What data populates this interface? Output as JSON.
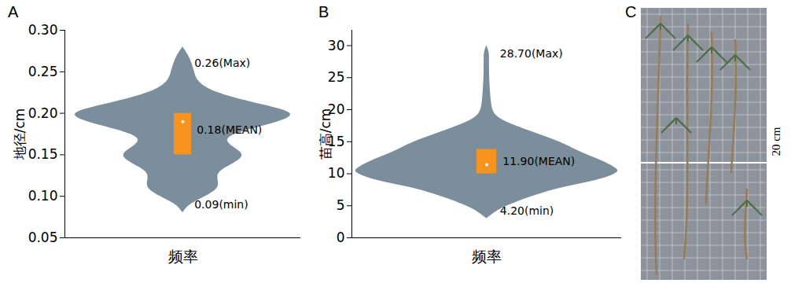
{
  "chart_data": [
    {
      "type": "violin",
      "panel": "A",
      "ylabel": "地径/cm",
      "xlabel": "频率",
      "ylim": [
        0.05,
        0.3
      ],
      "yticks": [
        0.05,
        {
          "value": 0.1,
          "label": "0.10"
        },
        0.15,
        {
          "value": 0.2,
          "label": "0.20"
        },
        0.25,
        {
          "value": 0.3,
          "label": "0.30"
        }
      ],
      "color": "#7b8e9b",
      "violin": {
        "y": [
          0.08,
          0.09,
          0.1,
          0.11,
          0.12,
          0.13,
          0.14,
          0.15,
          0.16,
          0.17,
          0.18,
          0.19,
          0.2,
          0.21,
          0.22,
          0.23,
          0.24,
          0.25,
          0.26,
          0.27,
          0.28
        ],
        "density": [
          0,
          0.05,
          0.2,
          0.32,
          0.3,
          0.3,
          0.45,
          0.55,
          0.42,
          0.35,
          0.55,
          0.85,
          1.0,
          0.7,
          0.4,
          0.2,
          0.12,
          0.1,
          0.08,
          0.05,
          0
        ]
      },
      "box": {
        "q1": 0.15,
        "q3": 0.2,
        "median": 0.19,
        "color": "#f7941d"
      },
      "annotations": [
        {
          "text": "0.26(Max)",
          "y": 0.26
        },
        {
          "text": "0.18(MEAN)",
          "y": 0.18
        },
        {
          "text": "0.09(min)",
          "y": 0.09
        }
      ]
    },
    {
      "type": "violin",
      "panel": "B",
      "ylabel": "苗高/cm",
      "xlabel": "频率",
      "ylim": [
        0,
        32.4
      ],
      "yticks": [
        0,
        5,
        10,
        15,
        20,
        25,
        30
      ],
      "color": "#7b8e9b",
      "violin": {
        "y": [
          3,
          4,
          5,
          6,
          7,
          8,
          9,
          10,
          10.5,
          11,
          12,
          13,
          14,
          15,
          16,
          17,
          18,
          19,
          20,
          22,
          25,
          28,
          29,
          30
        ],
        "density": [
          0,
          0.06,
          0.15,
          0.28,
          0.42,
          0.6,
          0.85,
          0.98,
          1.0,
          0.97,
          0.88,
          0.75,
          0.65,
          0.55,
          0.42,
          0.28,
          0.15,
          0.07,
          0.04,
          0.03,
          0.02,
          0.02,
          0.02,
          0
        ]
      },
      "box": {
        "q1": 10.0,
        "q3": 13.8,
        "median": 11.4,
        "color": "#f7941d"
      },
      "annotations": [
        {
          "text": "28.70(Max)",
          "y": 28.7
        },
        {
          "text": "11.90(MEAN)",
          "y": 11.9
        },
        {
          "text": "4.20(min)",
          "y": 4.2
        }
      ]
    }
  ],
  "photo": {
    "panel": "C",
    "scale_text": "20 cm"
  }
}
